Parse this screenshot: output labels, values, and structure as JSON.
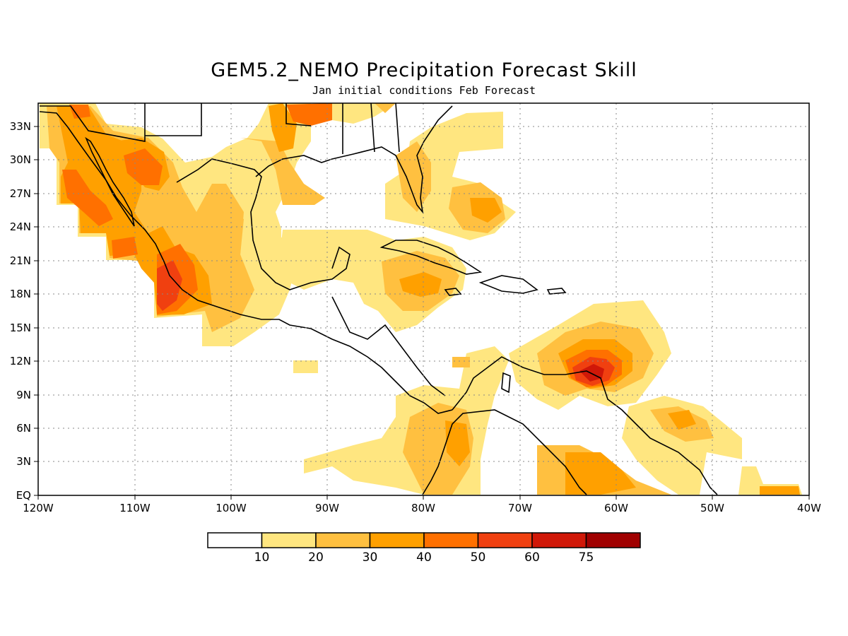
{
  "title": "GEM5.2_NEMO Precipitation Forecast Skill",
  "subtitle": "Jan initial conditions  Feb Forecast",
  "map": {
    "lon_range": [
      -120,
      -40
    ],
    "lat_range": [
      0,
      35
    ],
    "lon_ticks": [
      "120W",
      "110W",
      "100W",
      "90W",
      "80W",
      "70W",
      "60W",
      "50W",
      "40W"
    ],
    "lat_ticks": [
      "EQ",
      "3N",
      "6N",
      "9N",
      "12N",
      "15N",
      "18N",
      "21N",
      "24N",
      "27N",
      "30N",
      "33N"
    ],
    "grid": "dotted"
  },
  "colorbar": {
    "labels": [
      "10",
      "20",
      "30",
      "40",
      "50",
      "60",
      "75"
    ],
    "colors": [
      "#ffffff",
      "#ffe680",
      "#ffc040",
      "#ffa000",
      "#ff7000",
      "#f04010",
      "#d01808",
      "#a00000"
    ]
  }
}
